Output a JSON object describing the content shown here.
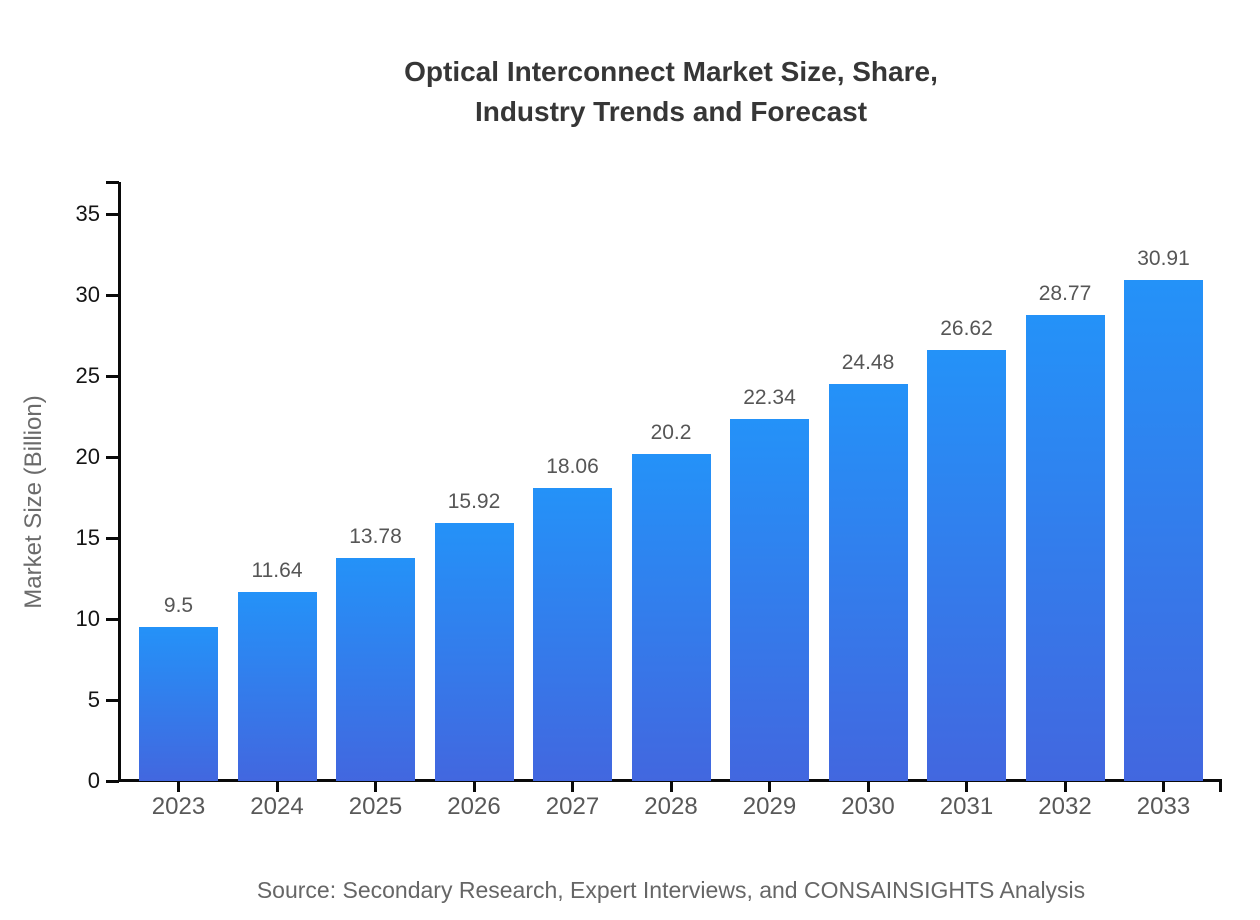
{
  "title": {
    "line1": "Optical Interconnect Market Size, Share,",
    "line2": "Industry Trends and Forecast"
  },
  "source_note": "Source: Secondary Research, Expert Interviews, and CONSAINSIGHTS Analysis",
  "chart_data": {
    "type": "bar",
    "title": "Optical Interconnect Market Size, Share, Industry Trends and Forecast",
    "categories": [
      "2023",
      "2024",
      "2025",
      "2026",
      "2027",
      "2028",
      "2029",
      "2030",
      "2031",
      "2032",
      "2033"
    ],
    "values": [
      9.5,
      11.64,
      13.78,
      15.92,
      18.06,
      20.2,
      22.34,
      24.48,
      26.62,
      28.77,
      30.91
    ],
    "value_labels": [
      "9.5",
      "11.64",
      "13.78",
      "15.92",
      "18.06",
      "20.2",
      "22.34",
      "24.48",
      "26.62",
      "28.77",
      "30.91"
    ],
    "xlabel": "",
    "ylabel": "Market Size (Billion)",
    "ylim": [
      0,
      35
    ],
    "yticks": [
      0,
      5,
      10,
      15,
      20,
      25,
      30,
      35
    ],
    "grid": false,
    "legend_position": "none",
    "colors": {
      "bar_gradient_top": "#2492f8",
      "bar_gradient_bottom": "#4267df",
      "axis": "#0a0a0a",
      "y_tick_label": "#141414",
      "x_tick_label": "#585858",
      "value_label": "#565656",
      "title": "#363636",
      "source": "#666666"
    }
  }
}
